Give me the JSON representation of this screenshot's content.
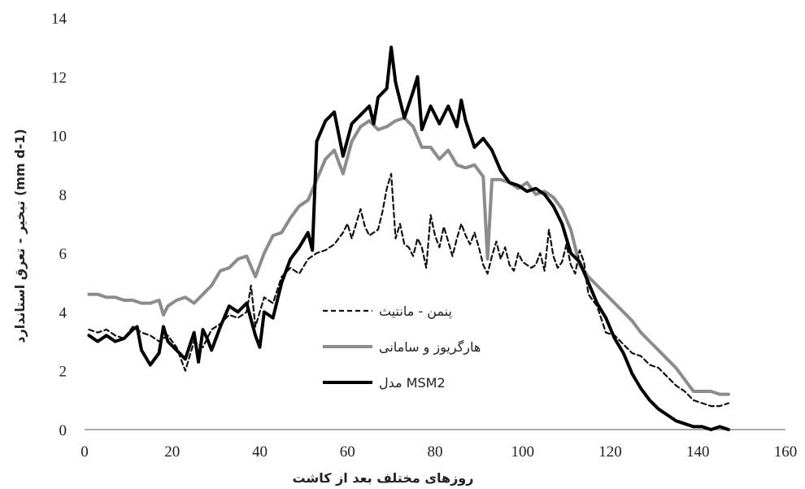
{
  "chart_data": {
    "type": "line",
    "xlabel": "روزهای مختلف بعد از کاشت",
    "ylabel": "تبخیر - تعرق استاندارد (mm d-1)",
    "xlim": [
      0,
      160
    ],
    "ylim": [
      0,
      14
    ],
    "xticks": [
      0,
      20,
      40,
      60,
      80,
      100,
      120,
      140,
      160
    ],
    "yticks": [
      0,
      2,
      4,
      6,
      8,
      10,
      12,
      14
    ],
    "grid": false,
    "legend_position": "center",
    "series": [
      {
        "name": "پنمن - مانتیث",
        "color": "#111111",
        "style": "dashed",
        "x": [
          1,
          3,
          5,
          7,
          9,
          11,
          13,
          15,
          17,
          19,
          21,
          23,
          25,
          27,
          29,
          31,
          33,
          35,
          37,
          38,
          39,
          41,
          43,
          45,
          47,
          49,
          51,
          53,
          55,
          57,
          59,
          60,
          61,
          63,
          64,
          65,
          67,
          68,
          69,
          70,
          71,
          72,
          73,
          74,
          75,
          76,
          77,
          78,
          79,
          80,
          81,
          82,
          83,
          84,
          85,
          86,
          87,
          88,
          89,
          90,
          91,
          92,
          93,
          94,
          95,
          96,
          97,
          98,
          99,
          100,
          101,
          102,
          103,
          104,
          105,
          106,
          107,
          108,
          109,
          110,
          111,
          112,
          113,
          114,
          115,
          117,
          119,
          121,
          123,
          125,
          127,
          129,
          131,
          133,
          135,
          137,
          139,
          141,
          143,
          145,
          147
        ],
        "values": [
          3.4,
          3.3,
          3.4,
          3.2,
          3.1,
          3.5,
          3.3,
          3.2,
          3.0,
          3.2,
          2.8,
          2.0,
          3.0,
          2.8,
          3.4,
          3.6,
          3.9,
          3.8,
          4.0,
          4.9,
          3.5,
          4.5,
          4.3,
          5.2,
          5.5,
          5.3,
          5.8,
          6.0,
          6.1,
          6.3,
          6.7,
          7.0,
          6.5,
          7.5,
          6.9,
          6.6,
          6.8,
          7.4,
          8.2,
          8.7,
          6.5,
          7.0,
          6.3,
          6.2,
          5.9,
          6.5,
          6.2,
          5.5,
          7.3,
          6.6,
          6.2,
          6.9,
          6.4,
          5.9,
          6.5,
          7.0,
          6.6,
          6.3,
          6.7,
          6.2,
          5.6,
          5.3,
          5.9,
          6.4,
          5.8,
          6.2,
          5.6,
          5.4,
          6.0,
          5.7,
          5.6,
          5.5,
          5.6,
          6.0,
          5.4,
          6.8,
          5.9,
          5.5,
          5.7,
          6.3,
          5.6,
          5.3,
          6.1,
          5.7,
          4.6,
          4.2,
          3.3,
          3.2,
          2.9,
          2.6,
          2.5,
          2.2,
          2.1,
          1.8,
          1.5,
          1.3,
          1.0,
          0.9,
          0.8,
          0.8,
          0.9
        ]
      },
      {
        "name": "هارگریوز و سامانی",
        "color": "#8c8c8c",
        "style": "solid",
        "x": [
          1,
          3,
          5,
          7,
          9,
          11,
          13,
          15,
          17,
          18,
          19,
          21,
          23,
          25,
          27,
          29,
          31,
          33,
          35,
          37,
          39,
          41,
          43,
          45,
          47,
          49,
          51,
          53,
          55,
          57,
          59,
          61,
          63,
          65,
          67,
          69,
          71,
          73,
          75,
          77,
          79,
          81,
          83,
          85,
          87,
          89,
          91,
          92,
          93,
          95,
          97,
          99,
          101,
          103,
          105,
          107,
          109,
          111,
          113,
          115,
          117,
          119,
          121,
          123,
          125,
          127,
          129,
          131,
          133,
          135,
          137,
          139,
          141,
          143,
          145,
          147
        ],
        "values": [
          4.6,
          4.6,
          4.5,
          4.5,
          4.4,
          4.4,
          4.3,
          4.3,
          4.4,
          3.9,
          4.2,
          4.4,
          4.5,
          4.3,
          4.6,
          4.9,
          5.4,
          5.5,
          5.8,
          5.9,
          5.2,
          6.0,
          6.6,
          6.7,
          7.2,
          7.6,
          7.8,
          8.5,
          9.2,
          9.5,
          8.7,
          9.8,
          10.3,
          10.5,
          10.2,
          10.3,
          10.5,
          10.6,
          10.3,
          9.6,
          9.6,
          9.2,
          9.5,
          9.0,
          8.9,
          9.0,
          8.6,
          5.8,
          8.5,
          8.5,
          8.4,
          8.2,
          8.4,
          8.0,
          8.1,
          7.9,
          7.5,
          6.8,
          5.6,
          5.2,
          4.9,
          4.6,
          4.3,
          4.0,
          3.7,
          3.3,
          3.0,
          2.7,
          2.4,
          2.1,
          1.7,
          1.3,
          1.3,
          1.3,
          1.2,
          1.2
        ]
      },
      {
        "name": "مدل MSM2",
        "color": "#000000",
        "style": "solid",
        "x": [
          1,
          3,
          5,
          7,
          9,
          11,
          12,
          13,
          15,
          17,
          18,
          19,
          21,
          23,
          25,
          26,
          27,
          28,
          29,
          31,
          33,
          35,
          37,
          39,
          40,
          41,
          43,
          45,
          47,
          49,
          51,
          52,
          53,
          55,
          57,
          59,
          61,
          63,
          65,
          66,
          67,
          69,
          70,
          71,
          73,
          75,
          76,
          77,
          79,
          81,
          83,
          85,
          86,
          87,
          89,
          91,
          93,
          95,
          97,
          99,
          101,
          103,
          105,
          107,
          109,
          111,
          113,
          115,
          117,
          119,
          121,
          123,
          125,
          127,
          129,
          131,
          133,
          135,
          137,
          139,
          141,
          143,
          145,
          147
        ],
        "values": [
          3.2,
          3.0,
          3.2,
          3.0,
          3.1,
          3.4,
          3.5,
          2.7,
          2.2,
          2.6,
          3.5,
          3.0,
          2.7,
          2.4,
          3.3,
          2.3,
          3.4,
          3.1,
          2.7,
          3.5,
          4.2,
          4.0,
          4.3,
          3.2,
          2.8,
          4.0,
          3.8,
          5.0,
          5.8,
          6.2,
          6.7,
          6.1,
          9.8,
          10.5,
          10.8,
          9.3,
          10.4,
          10.7,
          11.0,
          10.4,
          11.3,
          11.6,
          13.0,
          11.8,
          10.6,
          11.5,
          12.0,
          10.2,
          11.0,
          10.4,
          11.0,
          10.3,
          11.2,
          10.5,
          9.6,
          9.9,
          9.5,
          8.8,
          8.4,
          8.3,
          8.1,
          8.2,
          8.0,
          7.6,
          7.0,
          6.0,
          5.7,
          5.0,
          4.3,
          3.8,
          3.1,
          2.6,
          1.9,
          1.4,
          1.0,
          0.7,
          0.5,
          0.3,
          0.2,
          0.1,
          0.1,
          0.0,
          0.1,
          0.0
        ]
      }
    ]
  }
}
